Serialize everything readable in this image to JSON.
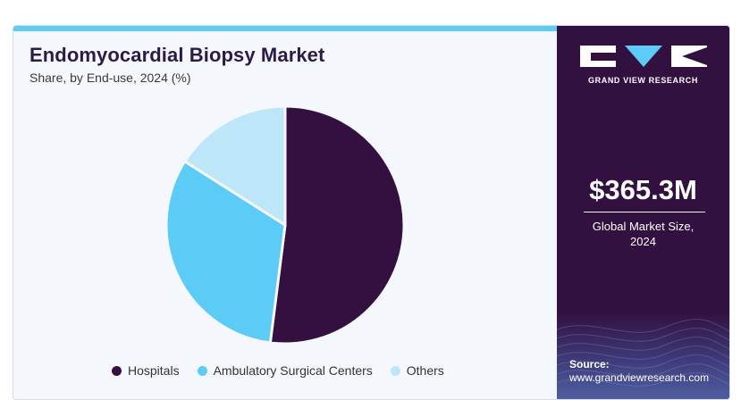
{
  "header": {
    "title": "Endomyocardial Biopsy Market",
    "subtitle": "Share, by End-use, 2024 (%)"
  },
  "chart_data": {
    "type": "pie",
    "categories": [
      "Hospitals",
      "Ambulatory Surgical Centers",
      "Others"
    ],
    "values": [
      52,
      32,
      16
    ],
    "colors": [
      "#33103f",
      "#5ccbf5",
      "#bde7f8"
    ],
    "legend_position": "bottom"
  },
  "sidebar": {
    "brand": "GRAND VIEW RESEARCH",
    "market_size": "$365.3M",
    "market_label_line1": "Global Market Size,",
    "market_label_line2": "2024",
    "source_label": "Source:",
    "source_url": "www.grandviewresearch.com",
    "accent_color": "#32103f"
  }
}
